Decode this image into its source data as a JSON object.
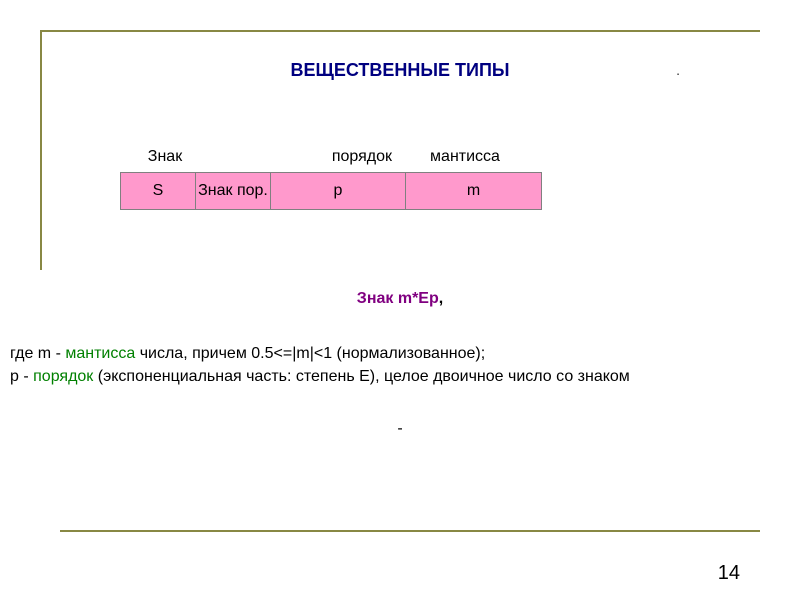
{
  "title": "ВЕЩЕСТВЕННЫЕ ТИПЫ",
  "labels": {
    "sign": "Знак",
    "order": "порядок",
    "mantissa": "мантисса"
  },
  "cells": {
    "s": "S",
    "sign_order": "Знак пор.",
    "p": "p",
    "m": "m"
  },
  "formula": "Знак m*Ep",
  "formula_comma": ",",
  "desc1_pre": "где m - ",
  "desc1_word": "мантисса",
  "desc1_post": " числа, причем 0.5<=|m|<1 (нормализованное);",
  "desc2_pre": "р - ",
  "desc2_word": "порядок",
  "desc2_post": " (экспоненциальная часть:  степень E), целое двоичное число со знаком",
  "dash": "-",
  "page": "14",
  "colors": {
    "title": "#000080",
    "line": "#888844",
    "cell_bg": "#ff99cc",
    "cell_border": "#808080",
    "formula": "#800080",
    "keyword": "#008000",
    "text": "#000000",
    "background": "#ffffff"
  }
}
